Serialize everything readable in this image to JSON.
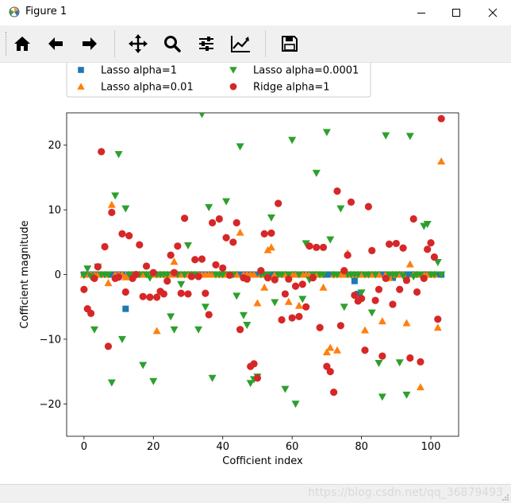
{
  "window": {
    "title": "Figure 1",
    "app_icon": "matplotlib-icon",
    "controls": [
      "minimize-icon",
      "maximize-icon",
      "close-icon"
    ]
  },
  "toolbar": {
    "buttons": [
      "home-icon",
      "back-icon",
      "forward-icon",
      "pan-icon",
      "zoom-icon",
      "configure-subplots-icon",
      "edit-axis-icon",
      "save-icon"
    ]
  },
  "status": {
    "watermark": "https://blog.csdn.net/qq_36879493"
  },
  "chart_data": {
    "type": "scatter",
    "title": "",
    "xlabel": "Cofficient index",
    "ylabel": "Cofficient magnitude",
    "xlim": [
      -5,
      108
    ],
    "ylim": [
      -25,
      25
    ],
    "xticks": [
      "0",
      "20",
      "40",
      "60",
      "80",
      "100"
    ],
    "yticks": [
      "−20",
      "−10",
      "0",
      "10",
      "20"
    ],
    "legend": {
      "placement": "top",
      "ncol": 2
    },
    "series": [
      {
        "name": "Lasso alpha=1",
        "marker": "square",
        "color": "#1f77b4",
        "x": [
          0,
          1,
          2,
          3,
          4,
          5,
          6,
          7,
          8,
          9,
          10,
          11,
          12,
          13,
          14,
          15,
          16,
          17,
          18,
          19,
          20,
          21,
          22,
          23,
          24,
          25,
          26,
          27,
          28,
          29,
          30,
          31,
          32,
          33,
          34,
          35,
          36,
          37,
          38,
          39,
          40,
          41,
          42,
          43,
          44,
          45,
          46,
          47,
          48,
          49,
          50,
          51,
          52,
          53,
          54,
          55,
          56,
          57,
          58,
          59,
          60,
          61,
          62,
          63,
          64,
          65,
          66,
          67,
          68,
          69,
          70,
          71,
          72,
          73,
          74,
          75,
          76,
          77,
          78,
          79,
          80,
          81,
          82,
          83,
          84,
          85,
          86,
          87,
          88,
          89,
          90,
          91,
          92,
          93,
          94,
          95,
          96,
          97,
          98,
          99,
          100,
          101,
          102,
          103
        ],
        "y": [
          0,
          0,
          0,
          0,
          0,
          0,
          0,
          0,
          0,
          0,
          0,
          0,
          -5.3,
          0,
          0,
          0,
          0,
          0,
          0,
          0,
          0,
          0,
          0,
          0,
          0,
          0,
          0,
          0,
          0,
          0,
          0,
          0,
          0,
          0,
          0,
          0,
          0,
          0,
          0,
          0,
          0,
          0,
          0,
          0,
          0,
          0,
          0,
          0,
          0,
          0,
          0,
          0,
          0,
          0,
          0,
          0,
          0,
          0,
          0,
          0,
          0,
          0,
          0,
          0,
          0,
          0,
          0,
          0,
          0,
          0,
          0,
          0,
          0,
          0,
          0,
          0,
          0,
          0,
          -1.0,
          -3.0,
          0,
          0,
          0,
          0,
          0,
          0,
          0,
          0,
          0,
          -0.5,
          0,
          0,
          0,
          0,
          0,
          0,
          0,
          0,
          0,
          0,
          0,
          0,
          0,
          0
        ]
      },
      {
        "name": "Lasso alpha=0.01",
        "marker": "triangle-up",
        "color": "#ff7f0e",
        "x": [
          0,
          1,
          2,
          3,
          4,
          5,
          6,
          7,
          8,
          9,
          10,
          11,
          12,
          13,
          14,
          15,
          16,
          17,
          18,
          19,
          20,
          21,
          22,
          23,
          24,
          25,
          26,
          27,
          28,
          29,
          30,
          31,
          32,
          33,
          34,
          35,
          36,
          37,
          38,
          39,
          40,
          41,
          42,
          43,
          44,
          45,
          46,
          47,
          48,
          49,
          50,
          51,
          52,
          53,
          54,
          55,
          56,
          57,
          58,
          59,
          60,
          61,
          62,
          63,
          64,
          65,
          66,
          67,
          68,
          69,
          70,
          71,
          72,
          73,
          74,
          75,
          76,
          77,
          78,
          79,
          80,
          81,
          82,
          83,
          84,
          85,
          86,
          87,
          88,
          89,
          90,
          91,
          92,
          93,
          94,
          95,
          96,
          97,
          98,
          99,
          100,
          101,
          102,
          103
        ],
        "y": [
          0,
          0,
          0,
          0,
          0,
          0,
          0,
          -1.3,
          10.8,
          0,
          0,
          0,
          -0.4,
          0,
          0,
          0,
          0,
          0,
          0,
          0,
          0,
          -8.7,
          0,
          0,
          0,
          0,
          2.0,
          0,
          0,
          0,
          0,
          0,
          0,
          0,
          0,
          0,
          0,
          0,
          0,
          0,
          0,
          0,
          0,
          0,
          0,
          6.5,
          0,
          0,
          0,
          0,
          -4.4,
          0,
          -2.0,
          3.8,
          4.2,
          0,
          0,
          0,
          0,
          -4.2,
          0,
          0,
          -4.8,
          0,
          0,
          0,
          0,
          0,
          0,
          -2.0,
          -12.0,
          -11.3,
          0,
          -11.7,
          0,
          0,
          3.3,
          0,
          0,
          0,
          0,
          -8.6,
          0,
          0,
          0,
          0,
          -7.2,
          0,
          -0.5,
          0,
          0,
          0,
          0,
          -7.5,
          1.6,
          0,
          0,
          -17.4,
          0,
          0,
          0,
          0,
          -8.2,
          17.5
        ]
      },
      {
        "name": "Lasso alpha=0.0001",
        "marker": "triangle-down",
        "color": "#2ca02c",
        "x": [
          0,
          1,
          2,
          3,
          4,
          5,
          6,
          7,
          8,
          9,
          10,
          11,
          12,
          13,
          14,
          15,
          16,
          17,
          18,
          19,
          20,
          21,
          22,
          23,
          24,
          25,
          26,
          27,
          28,
          29,
          30,
          31,
          32,
          33,
          34,
          35,
          36,
          37,
          38,
          39,
          40,
          41,
          42,
          43,
          44,
          45,
          46,
          47,
          48,
          49,
          50,
          51,
          52,
          53,
          54,
          55,
          56,
          57,
          58,
          59,
          60,
          61,
          62,
          63,
          64,
          65,
          66,
          67,
          68,
          69,
          70,
          71,
          72,
          73,
          74,
          75,
          76,
          77,
          78,
          79,
          80,
          81,
          82,
          83,
          84,
          85,
          86,
          87,
          88,
          89,
          90,
          91,
          92,
          93,
          94,
          95,
          96,
          97,
          98,
          99,
          100,
          101,
          102,
          103
        ],
        "y": [
          -0.1,
          0.9,
          -0.3,
          -8.5,
          1.2,
          0,
          0,
          0,
          -16.7,
          12.2,
          18.6,
          -10.0,
          10.2,
          0,
          0,
          0,
          0,
          -14.0,
          0,
          -0.5,
          -16.5,
          0,
          0,
          0,
          0,
          -6.5,
          -8.5,
          0,
          -1.5,
          0,
          4.5,
          0,
          0,
          -8.5,
          24.8,
          -5.0,
          10.4,
          -16.0,
          0,
          0,
          0,
          11.3,
          0,
          0,
          -3.3,
          19.8,
          -6.3,
          -7.8,
          -16.8,
          -16.2,
          -15.8,
          0,
          0,
          0,
          8.8,
          -4.3,
          0,
          0,
          -17.7,
          0,
          20.8,
          -20.0,
          0,
          -3.8,
          4.8,
          -0.8,
          0,
          15.7,
          0,
          0,
          22.0,
          5.4,
          0,
          0,
          10.2,
          -5.0,
          0,
          0,
          0,
          0,
          -2.8,
          0,
          0,
          -5.9,
          0,
          -13.7,
          -18.9,
          21.5,
          0,
          0,
          0,
          -13.6,
          -0.2,
          -18.6,
          21.4,
          -0.3,
          0,
          0,
          7.5,
          7.8,
          0,
          0,
          1.9,
          0
        ]
      },
      {
        "name": "Ridge alpha=1",
        "marker": "circle",
        "color": "#d62728",
        "x": [
          0,
          1,
          2,
          3,
          4,
          5,
          6,
          7,
          8,
          9,
          10,
          11,
          12,
          13,
          14,
          15,
          16,
          17,
          18,
          19,
          20,
          21,
          22,
          23,
          24,
          25,
          26,
          27,
          28,
          29,
          30,
          31,
          32,
          33,
          34,
          35,
          36,
          37,
          38,
          39,
          40,
          41,
          42,
          43,
          44,
          45,
          46,
          47,
          48,
          49,
          50,
          51,
          52,
          53,
          54,
          55,
          56,
          57,
          58,
          59,
          60,
          61,
          62,
          63,
          64,
          65,
          66,
          67,
          68,
          69,
          70,
          71,
          72,
          73,
          74,
          75,
          76,
          77,
          78,
          79,
          80,
          81,
          82,
          83,
          84,
          85,
          86,
          87,
          88,
          89,
          90,
          91,
          92,
          93,
          94,
          95,
          96,
          97,
          98,
          99,
          100,
          101,
          102,
          103
        ],
        "y": [
          -2.3,
          -5.3,
          -6.0,
          -0.6,
          1.2,
          19.0,
          4.3,
          -11.1,
          9.6,
          -0.6,
          -0.4,
          6.3,
          -2.7,
          6.0,
          -0.6,
          0,
          4.6,
          -3.4,
          1.3,
          -3.5,
          0.3,
          -3.5,
          -2.6,
          -3.0,
          -1.0,
          3.0,
          0.3,
          4.4,
          -2.9,
          8.7,
          -3.0,
          -0.3,
          2.3,
          -0.3,
          2.4,
          -2.9,
          -6.2,
          8.0,
          1.5,
          8.6,
          1.0,
          5.7,
          -0.1,
          5.0,
          8.0,
          -8.5,
          -0.5,
          -0.7,
          -14.2,
          -13.8,
          -16.0,
          0.6,
          6.3,
          -0.5,
          6.4,
          -0.8,
          11.0,
          -7.0,
          -3.0,
          -0.7,
          -6.7,
          -1.8,
          -6.5,
          -1.5,
          -5.0,
          4.4,
          -0.5,
          4.2,
          -8.2,
          4.2,
          -14.2,
          -15.0,
          -18.2,
          12.9,
          -7.9,
          0.6,
          3.0,
          11.2,
          -3.2,
          -4.1,
          -3.7,
          -11.7,
          10.5,
          3.7,
          -4.0,
          -2.3,
          -12.6,
          -0.6,
          4.7,
          -4.6,
          4.8,
          -2.3,
          4.1,
          -0.9,
          -12.9,
          8.6,
          -2.7,
          -13.5,
          -0.6,
          3.9,
          4.9,
          2.7,
          -6.9,
          24.1
        ]
      }
    ]
  }
}
